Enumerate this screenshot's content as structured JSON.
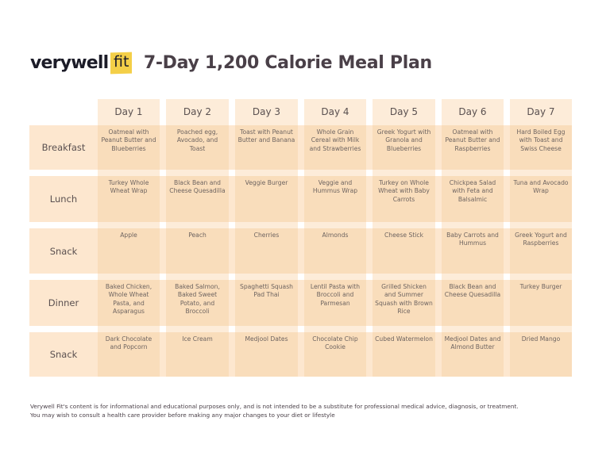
{
  "header": {
    "logo_word": "verywell",
    "logo_badge": "fit",
    "title": "7-Day 1,200 Calorie Meal Plan"
  },
  "colors": {
    "column_bg": "#fdecd9",
    "row_bg": "#fde7cf",
    "cell_bg": "#f9ddbb",
    "logo_badge": "#f4cf48",
    "title_text": "#4a4048"
  },
  "days": [
    "Day 1",
    "Day 2",
    "Day 3",
    "Day 4",
    "Day 5",
    "Day 6",
    "Day 7"
  ],
  "meals": [
    {
      "label": "Breakfast",
      "items": [
        "Oatmeal with Peanut Butter and Blueberries",
        "Poached egg, Avocado, and Toast",
        "Toast with Peanut Butter and Banana",
        "Whole Grain Cereal with Milk and Strawberries",
        "Greek Yogurt with Granola and Blueberries",
        "Oatmeal with Peanut Butter and Raspberries",
        "Hard Boiled Egg with Toast and Swiss Cheese"
      ]
    },
    {
      "label": "Lunch",
      "items": [
        "Turkey Whole Wheat Wrap",
        "Black Bean and Cheese Quesadilla",
        "Veggie Burger",
        "Veggie and Hummus Wrap",
        "Turkey on Whole Wheat with Baby Carrots",
        "Chickpea Salad with Feta and Balsalmic",
        "Tuna and Avocado Wrap"
      ]
    },
    {
      "label": "Snack",
      "items": [
        "Apple",
        "Peach",
        "Cherries",
        "Almonds",
        "Cheese Stick",
        "Baby Carrots and Hummus",
        "Greek Yogurt and Raspberries"
      ]
    },
    {
      "label": "Dinner",
      "items": [
        "Baked Chicken, Whole Wheat Pasta, and Asparagus",
        "Baked Salmon, Baked Sweet Potato, and Broccoli",
        "Spaghetti Squash Pad Thai",
        "Lentil Pasta with Broccoli and Parmesan",
        "Grilled Shicken and Summer Squash with Brown Rice",
        "Black Bean and Cheese Quesadilla",
        "Turkey Burger"
      ]
    },
    {
      "label": "Snack",
      "items": [
        "Dark Chocolate and Popcorn",
        "Ice Cream",
        "Medjool Dates",
        "Chocolate Chip Cookie",
        "Cubed Watermelon",
        "Medjool Dates and Almond Butter",
        "Dried Mango"
      ]
    }
  ],
  "footer": {
    "line1": "Verywell Fit's content is for informational and educational purposes only, and is not intended to be a substitute for professional medical advice, diagnosis, or treatment.",
    "line2": "You may wish to consult a health care provider before making any major changes to your diet or lifestyle"
  }
}
